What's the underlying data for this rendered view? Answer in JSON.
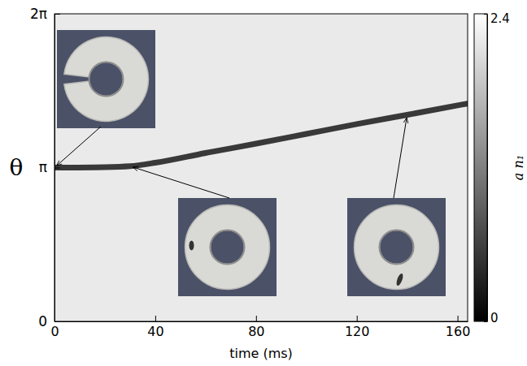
{
  "chart_data": {
    "type": "heatmap",
    "x_label": "time (ms)",
    "y_label": "θ",
    "xlim": [
      0,
      164
    ],
    "xticks": [
      0,
      40,
      80,
      120,
      160
    ],
    "ylim": [
      0,
      6.28319
    ],
    "yticks": [
      0,
      {
        "value": 3.14159,
        "label": "π"
      },
      {
        "value": 6.28319,
        "label": "2π"
      }
    ],
    "background_value": 2.2,
    "series": [
      {
        "type": "line",
        "color": "#1a1a1a",
        "x": [
          0,
          20,
          30,
          40,
          60,
          80,
          100,
          120,
          140,
          164
        ],
        "values": [
          3.14,
          3.15,
          3.17,
          3.24,
          3.44,
          3.63,
          3.83,
          4.03,
          4.22,
          4.45
        ]
      }
    ],
    "colorbar_label": "a n₁",
    "colorbar_lim": [
      0,
      2.4
    ],
    "colorbar_ticks": [
      0,
      2.4
    ]
  }
}
